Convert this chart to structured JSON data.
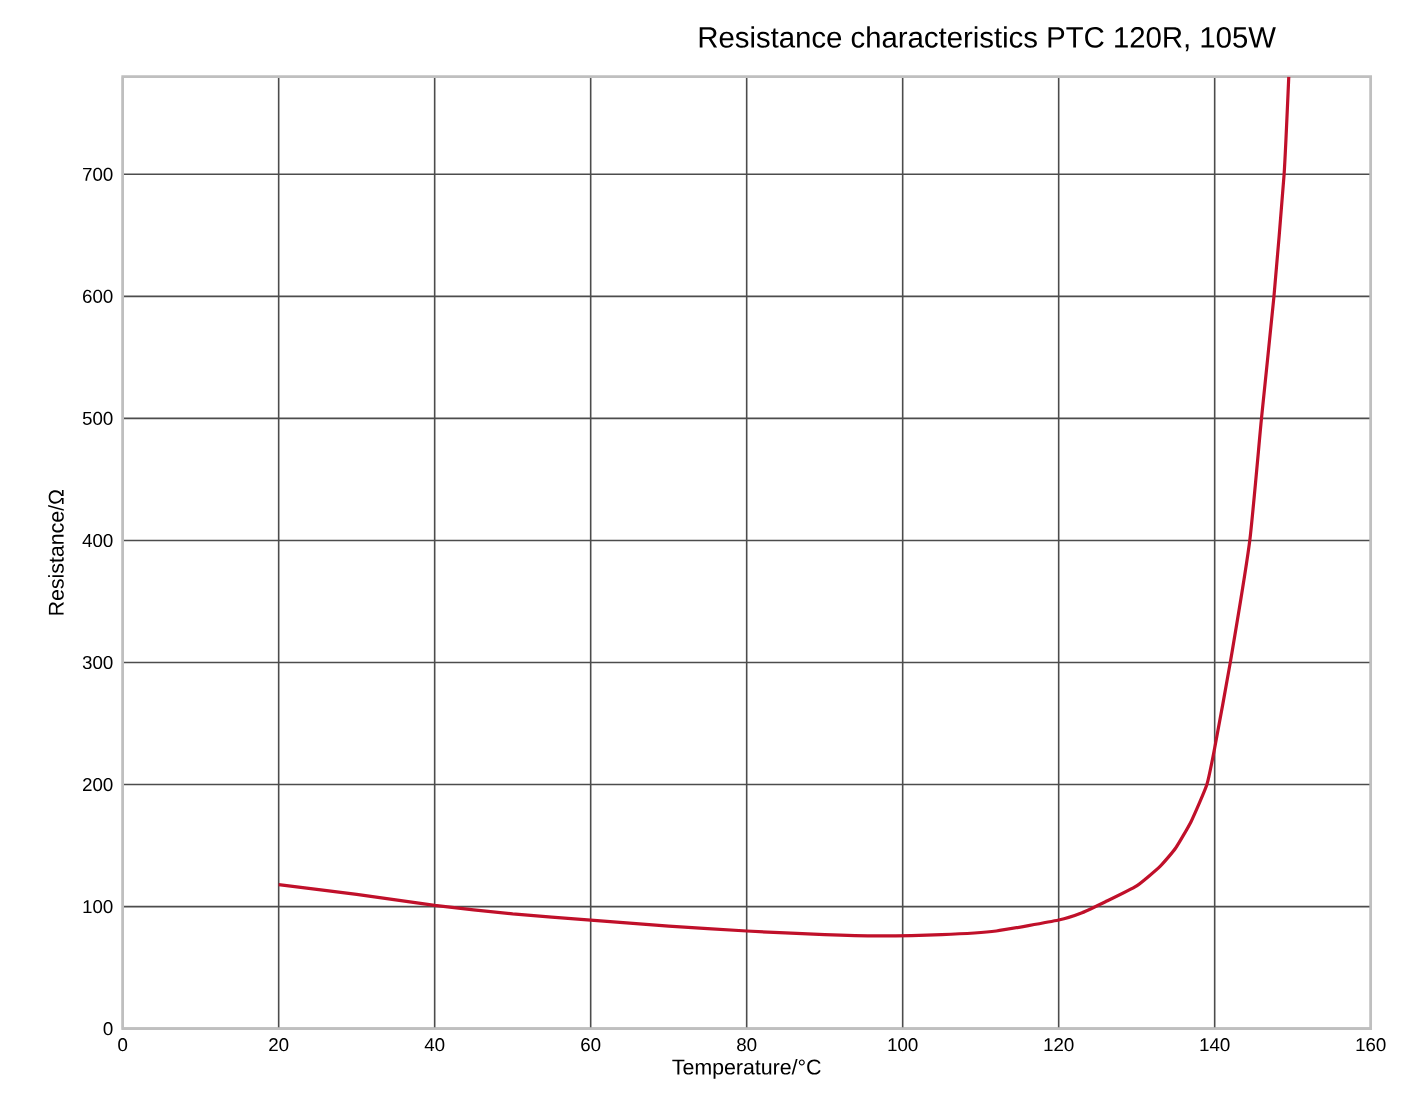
{
  "chart_data": {
    "type": "line",
    "title": "Resistance characteristics PTC 120R, 105W",
    "xlabel": "Temperature/°C",
    "ylabel": "Resistance/Ω",
    "series": [
      {
        "color": "#c0102a",
        "x": [
          20,
          30,
          40,
          50,
          60,
          70,
          80,
          90,
          97,
          105,
          112,
          120,
          123,
          126,
          130,
          133,
          135,
          137,
          139,
          140,
          142,
          144.5,
          146,
          147.6,
          148.9,
          149.5
        ],
        "values": [
          118,
          110,
          101,
          94,
          89,
          84,
          80,
          77,
          76,
          77,
          80,
          89,
          95,
          104,
          117,
          133,
          148,
          170,
          200,
          230,
          300,
          400,
          500,
          600,
          700,
          780
        ]
      }
    ],
    "xlim": [
      0,
      160
    ],
    "ylim": [
      0,
      780
    ],
    "xticks": [
      0,
      20,
      40,
      60,
      80,
      100,
      120,
      140,
      160
    ],
    "yticks": [
      0,
      100,
      200,
      300,
      400,
      500,
      600,
      700
    ],
    "grid": true,
    "marker": "none",
    "line_style": "solid"
  }
}
